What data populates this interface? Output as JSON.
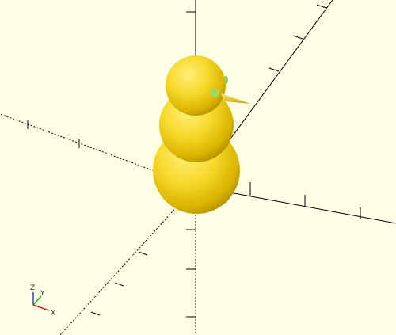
{
  "viewport": {
    "axis_gizmo": {
      "z_label": "Z",
      "y_label": "Y",
      "x_label": "X"
    }
  }
}
